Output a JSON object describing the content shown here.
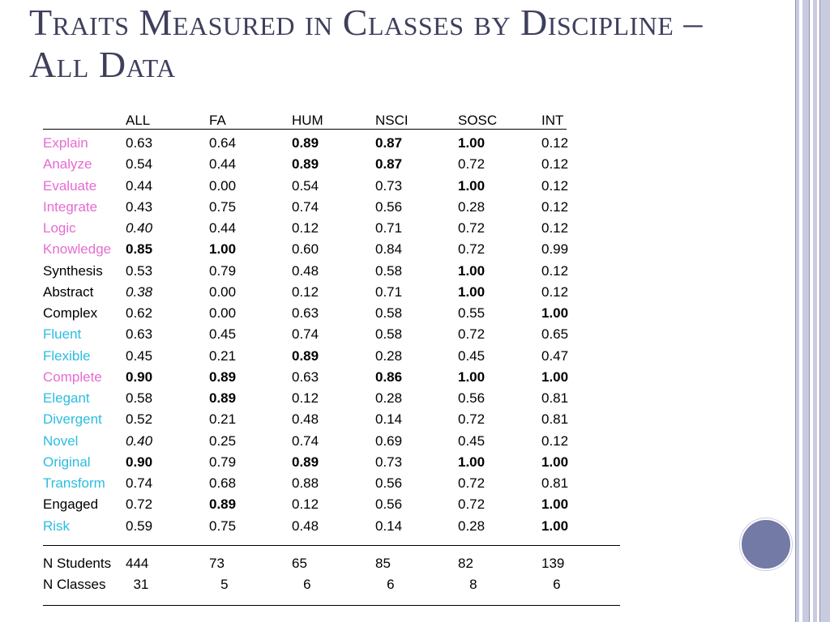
{
  "title": {
    "line1": "Traits Measured in Classes by Discipline –",
    "line2": "All Data"
  },
  "colors": {
    "title": "#3e3f5c",
    "pink_label": "#e66bd2",
    "cyan_label": "#2bbde0",
    "accent_circle": "#737aa6"
  },
  "table": {
    "headers": [
      "",
      "ALL",
      "FA",
      "HUM",
      "NSCI",
      "SOSC",
      "INT"
    ],
    "rows": [
      {
        "label": "Explain",
        "color": "pink",
        "cells": [
          "0.63",
          "0.64",
          "0.89",
          "0.87",
          "1.00",
          "0.12"
        ],
        "bold": [
          2,
          3,
          4
        ],
        "italic": []
      },
      {
        "label": "Analyze",
        "color": "pink",
        "cells": [
          "0.54",
          "0.44",
          "0.89",
          "0.87",
          "0.72",
          "0.12"
        ],
        "bold": [
          2,
          3
        ],
        "italic": []
      },
      {
        "label": "Evaluate",
        "color": "pink",
        "cells": [
          "0.44",
          "0.00",
          "0.54",
          "0.73",
          "1.00",
          "0.12"
        ],
        "bold": [
          4
        ],
        "italic": []
      },
      {
        "label": "Integrate",
        "color": "pink",
        "cells": [
          "0.43",
          "0.75",
          "0.74",
          "0.56",
          "0.28",
          "0.12"
        ],
        "bold": [],
        "italic": []
      },
      {
        "label": "Logic",
        "color": "pink",
        "cells": [
          "0.40",
          "0.44",
          "0.12",
          "0.71",
          "0.72",
          "0.12"
        ],
        "bold": [],
        "italic": [
          0
        ]
      },
      {
        "label": "Knowledge",
        "color": "pink",
        "cells": [
          "0.85",
          "1.00",
          "0.60",
          "0.84",
          "0.72",
          "0.99"
        ],
        "bold": [
          0,
          1
        ],
        "italic": []
      },
      {
        "label": "Synthesis",
        "color": "black",
        "cells": [
          "0.53",
          "0.79",
          "0.48",
          "0.58",
          "1.00",
          "0.12"
        ],
        "bold": [
          4
        ],
        "italic": []
      },
      {
        "label": "Abstract",
        "color": "black",
        "cells": [
          "0.38",
          "0.00",
          "0.12",
          "0.71",
          "1.00",
          "0.12"
        ],
        "bold": [
          4
        ],
        "italic": [
          0
        ]
      },
      {
        "label": "Complex",
        "color": "black",
        "cells": [
          "0.62",
          "0.00",
          "0.63",
          "0.58",
          "0.55",
          "1.00"
        ],
        "bold": [
          5
        ],
        "italic": []
      },
      {
        "label": "Fluent",
        "color": "cyan",
        "cells": [
          "0.63",
          "0.45",
          "0.74",
          "0.58",
          "0.72",
          "0.65"
        ],
        "bold": [],
        "italic": []
      },
      {
        "label": "Flexible",
        "color": "cyan",
        "cells": [
          "0.45",
          "0.21",
          "0.89",
          "0.28",
          "0.45",
          "0.47"
        ],
        "bold": [
          2
        ],
        "italic": []
      },
      {
        "label": "Complete",
        "color": "pink",
        "cells": [
          "0.90",
          "0.89",
          "0.63",
          "0.86",
          "1.00",
          "1.00"
        ],
        "bold": [
          0,
          1,
          3,
          4,
          5
        ],
        "italic": []
      },
      {
        "label": "Elegant",
        "color": "cyan",
        "cells": [
          "0.58",
          "0.89",
          "0.12",
          "0.28",
          "0.56",
          "0.81"
        ],
        "bold": [
          1
        ],
        "italic": []
      },
      {
        "label": "Divergent",
        "color": "cyan",
        "cells": [
          "0.52",
          "0.21",
          "0.48",
          "0.14",
          "0.72",
          "0.81"
        ],
        "bold": [],
        "italic": []
      },
      {
        "label": "Novel",
        "color": "cyan",
        "cells": [
          "0.40",
          "0.25",
          "0.74",
          "0.69",
          "0.45",
          "0.12"
        ],
        "bold": [],
        "italic": [
          0
        ]
      },
      {
        "label": "Original",
        "color": "cyan",
        "cells": [
          "0.90",
          "0.79",
          "0.89",
          "0.73",
          "1.00",
          "1.00"
        ],
        "bold": [
          0,
          2,
          4,
          5
        ],
        "italic": []
      },
      {
        "label": "Transform",
        "color": "cyan",
        "cells": [
          "0.74",
          "0.68",
          "0.88",
          "0.56",
          "0.72",
          "0.81"
        ],
        "bold": [],
        "italic": []
      },
      {
        "label": "Engaged",
        "color": "black",
        "cells": [
          "0.72",
          "0.89",
          "0.12",
          "0.56",
          "0.72",
          "1.00"
        ],
        "bold": [
          1,
          5
        ],
        "italic": []
      },
      {
        "label": "Risk",
        "color": "cyan",
        "cells": [
          "0.59",
          "0.75",
          "0.48",
          "0.14",
          "0.28",
          "1.00"
        ],
        "bold": [
          5
        ],
        "italic": []
      }
    ],
    "footer_rows": [
      {
        "label": "N Students",
        "cells": [
          "444",
          "73",
          "65",
          "85",
          "82",
          "139"
        ]
      },
      {
        "label": "N Classes",
        "cells": [
          "  31",
          "   5",
          "   6",
          "   6",
          "   8",
          "   6"
        ]
      }
    ]
  }
}
